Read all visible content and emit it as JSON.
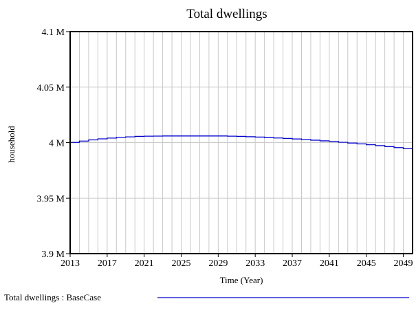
{
  "chart_data": {
    "type": "line",
    "title": "Total dwellings",
    "xlabel": "Time (Year)",
    "ylabel": "household",
    "xlim": [
      2013,
      2050
    ],
    "ylim": [
      3.9,
      4.1
    ],
    "y_unit": "M",
    "x_tick_values": [
      2013,
      2017,
      2021,
      2025,
      2029,
      2033,
      2037,
      2041,
      2045,
      2049
    ],
    "x_tick_labels": [
      "2013",
      "2017",
      "2021",
      "2025",
      "2029",
      "2033",
      "2037",
      "2041",
      "2045",
      "2049"
    ],
    "y_tick_values": [
      3.9,
      3.95,
      4.0,
      4.05,
      4.1
    ],
    "y_tick_labels": [
      "3.9 M",
      "3.95 M",
      "4 M",
      "4.05 M",
      "4.1 M"
    ],
    "grid": true,
    "series": [
      {
        "name": "Total dwellings : BaseCase",
        "color": "#0000cc",
        "x": [
          2013,
          2014,
          2015,
          2016,
          2017,
          2018,
          2019,
          2020,
          2021,
          2022,
          2023,
          2024,
          2025,
          2026,
          2027,
          2028,
          2029,
          2030,
          2031,
          2032,
          2033,
          2034,
          2035,
          2036,
          2037,
          2038,
          2039,
          2040,
          2041,
          2042,
          2043,
          2044,
          2045,
          2046,
          2047,
          2048,
          2049,
          2050
        ],
        "y": [
          4.0002,
          4.0014,
          4.0025,
          4.0034,
          4.0041,
          4.0047,
          4.0052,
          4.0056,
          4.0058,
          4.0059,
          4.006,
          4.006,
          4.006,
          4.006,
          4.006,
          4.006,
          4.006,
          4.0058,
          4.0056,
          4.0053,
          4.005,
          4.0046,
          4.0042,
          4.0038,
          4.0033,
          4.0028,
          4.0022,
          4.0016,
          4.001,
          4.0003,
          3.9996,
          3.9989,
          3.9981,
          3.9973,
          3.9964,
          3.9955,
          3.9946,
          3.9937
        ]
      }
    ],
    "legend": {
      "position": "bottom-left",
      "label": "Total dwellings : BaseCase"
    }
  }
}
